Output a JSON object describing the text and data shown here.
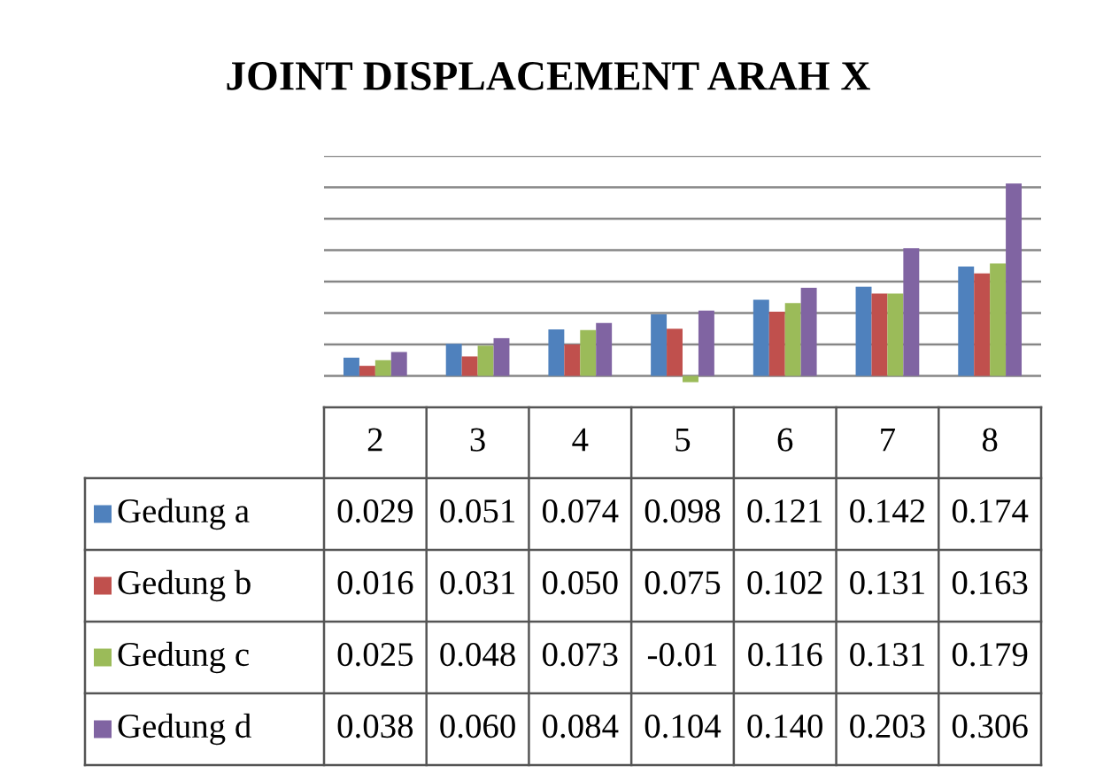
{
  "chart_data": {
    "type": "bar",
    "title": "JOINT DISPLACEMENT ARAH X",
    "categories": [
      "2",
      "3",
      "4",
      "5",
      "6",
      "7",
      "8"
    ],
    "series": [
      {
        "name": "Gedung a",
        "color": "#4f81bd",
        "values": [
          0.029,
          0.051,
          0.074,
          0.098,
          0.121,
          0.142,
          0.174
        ],
        "value_labels": [
          "0.029",
          "0.051",
          "0.074",
          "0.098",
          "0.121",
          "0.142",
          "0.174"
        ]
      },
      {
        "name": "Gedung b",
        "color": "#c0504d",
        "values": [
          0.016,
          0.031,
          0.05,
          0.075,
          0.102,
          0.131,
          0.163
        ],
        "value_labels": [
          "0.016",
          "0.031",
          "0.050",
          "0.075",
          "0.102",
          "0.131",
          "0.163"
        ]
      },
      {
        "name": "Gedung c",
        "color": "#9bbb59",
        "values": [
          0.025,
          0.048,
          0.073,
          -0.01,
          0.116,
          0.131,
          0.179
        ],
        "value_labels": [
          "0.025",
          "0.048",
          "0.073",
          "-0.01",
          "0.116",
          "0.131",
          "0.179"
        ]
      },
      {
        "name": "Gedung d",
        "color": "#8064a2",
        "values": [
          0.038,
          0.06,
          0.084,
          0.104,
          0.14,
          0.203,
          0.306
        ],
        "value_labels": [
          "0.038",
          "0.060",
          "0.084",
          "0.104",
          "0.140",
          "0.203",
          "0.306"
        ]
      }
    ],
    "ylim": [
      -0.05,
      0.35
    ],
    "yticks": [
      {
        "value": 0,
        "label": null
      },
      {
        "value": 0.05,
        "label": null
      },
      {
        "value": 0.1,
        "label": null
      },
      {
        "value": 0.15,
        "label": null
      },
      {
        "value": 0.2,
        "label": null
      },
      {
        "value": 0.25,
        "label": null
      },
      {
        "value": 0.3,
        "label": null
      },
      {
        "value": 0.35,
        "label": null
      }
    ],
    "grid": "y",
    "legend": "left"
  }
}
